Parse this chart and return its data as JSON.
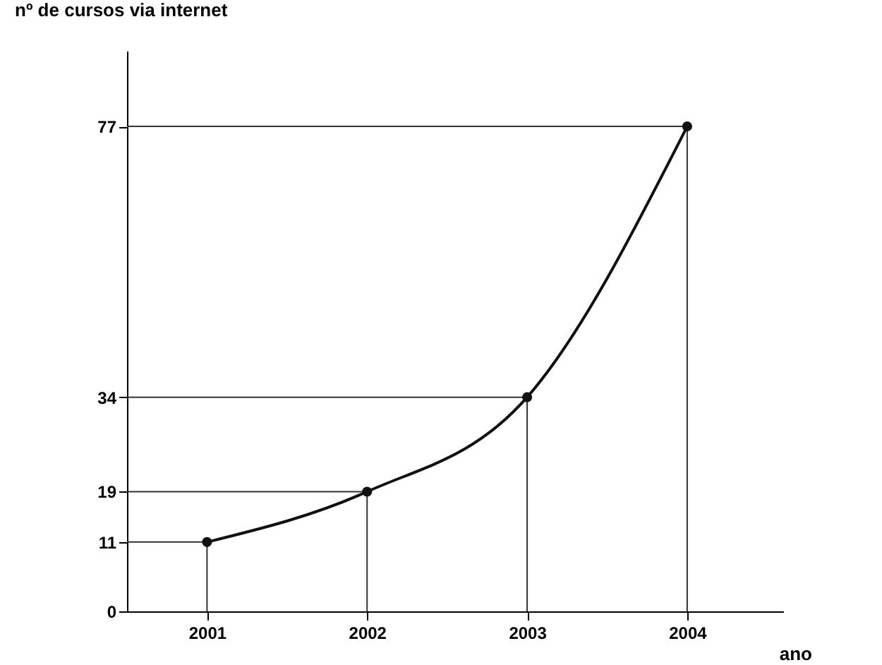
{
  "chart_data": {
    "type": "line",
    "xlabel": "ano",
    "ylabel": "nº de cursos via internet",
    "x": [
      2001,
      2002,
      2003,
      2004
    ],
    "series": [
      {
        "color": "#111111",
        "values": [
          11,
          19,
          34,
          77
        ]
      },
      {
        "type": "step",
        "marker": "none",
        "color": "#333333",
        "x": [
          2000.5,
          2001,
          2001
        ],
        "values": [
          11,
          11,
          0
        ]
      },
      {
        "type": "step",
        "marker": "none",
        "color": "#333333",
        "x": [
          2000.5,
          2002,
          2002
        ],
        "values": [
          19,
          19,
          0
        ]
      },
      {
        "type": "step",
        "marker": "none",
        "color": "#333333",
        "x": [
          2000.5,
          2003,
          2003
        ],
        "values": [
          34,
          34,
          0
        ]
      },
      {
        "type": "step",
        "marker": "none",
        "color": "#333333",
        "x": [
          2000.5,
          2004,
          2004
        ],
        "values": [
          77,
          77,
          0
        ]
      }
    ],
    "xlim": [
      2000.5,
      2004.6
    ],
    "xticks": [
      2001,
      2002,
      2003,
      2004
    ],
    "ylim": [
      0,
      89
    ],
    "yticks": [
      0,
      11,
      19,
      34,
      77
    ],
    "marker": "circle"
  }
}
